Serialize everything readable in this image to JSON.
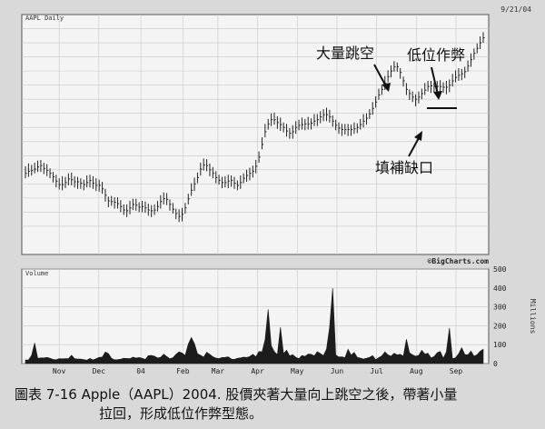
{
  "chart_data": [
    {
      "type": "line",
      "title": "AAPL Daily",
      "date": "9/21/04",
      "months": [
        "Nov",
        "Dec",
        "04",
        "Feb",
        "Mar",
        "Apr",
        "May",
        "Jun",
        "Jul",
        "Aug",
        "Sep"
      ],
      "series": [
        {
          "values": [
            63.5,
            63.8,
            63.9,
            64.1,
            64.4,
            64.6,
            64.2,
            63.9,
            63.5,
            63.0,
            62.4,
            61.9,
            61.9,
            62.2,
            62.7,
            62.6,
            62.3,
            62.3,
            62.1,
            61.9,
            62.2,
            62.5,
            62.1,
            61.8,
            61.8,
            61.3,
            60.4,
            59.6,
            59.5,
            59.4,
            59.2,
            58.8,
            58.3,
            58.2,
            58.6,
            59.1,
            59.0,
            58.7,
            58.8,
            58.6,
            58.3,
            58.2,
            58.3,
            58.8,
            59.5,
            59.9,
            59.8,
            59.1,
            58.4,
            57.8,
            57.4,
            57.7,
            58.6,
            59.9,
            61.1,
            62.0,
            62.9,
            64.1,
            64.7,
            64.6,
            64.0,
            63.5,
            62.9,
            62.5,
            62.2,
            62.2,
            62.4,
            62.5,
            62.1,
            61.8,
            62.2,
            62.8,
            63.2,
            63.5,
            63.8,
            64.5,
            65.8,
            67.6,
            69.4,
            70.5,
            71.1,
            71.1,
            70.7,
            70.4,
            70.0,
            69.5,
            69.2,
            69.4,
            70.0,
            70.3,
            70.4,
            70.5,
            70.5,
            70.6,
            70.9,
            71.1,
            71.5,
            71.8,
            71.8,
            71.5,
            70.9,
            70.3,
            69.9,
            69.7,
            69.7,
            69.7,
            69.7,
            69.8,
            70.0,
            70.4,
            70.9,
            71.3,
            71.9,
            72.7,
            73.6,
            74.6,
            75.4,
            76.3,
            77.2,
            78.0,
            78.6,
            78.6,
            77.8,
            76.6,
            75.4,
            74.8,
            74.3,
            74.0,
            74.3,
            74.8,
            75.3,
            75.8,
            75.9,
            75.8,
            75.8,
            75.8,
            75.7,
            75.7,
            76.0,
            76.6,
            77.1,
            77.4,
            77.6,
            77.9,
            78.7,
            79.6,
            80.5,
            81.2,
            82.0,
            82.7
          ],
          "highs": [
            64.5,
            64.9,
            64.7,
            65.0,
            65.3,
            65.4,
            65.0,
            64.8,
            64.2,
            63.7,
            63.3,
            62.8,
            63.1,
            63.0,
            63.5,
            63.6,
            63.1,
            63.0,
            62.8,
            62.6,
            63.2,
            63.3,
            63.1,
            62.8,
            62.6,
            62.3,
            61.3,
            60.2,
            60.3,
            60.1,
            60.1,
            59.7,
            59.1,
            59.1,
            59.6,
            59.9,
            59.9,
            59.4,
            59.6,
            59.5,
            59.2,
            59.0,
            59.1,
            59.6,
            60.4,
            60.8,
            60.7,
            59.8,
            59.3,
            58.5,
            58.4,
            58.6,
            59.3,
            60.6,
            62.1,
            62.9,
            63.6,
            65.0,
            65.6,
            65.5,
            64.9,
            64.4,
            63.8,
            63.3,
            63.0,
            63.1,
            63.3,
            63.2,
            63.0,
            62.5,
            63.2,
            63.5,
            64.0,
            64.3,
            64.6,
            65.4,
            66.6,
            68.6,
            70.5,
            71.2,
            72.0,
            72.1,
            71.6,
            71.4,
            70.7,
            70.5,
            69.9,
            70.3,
            70.9,
            71.1,
            71.4,
            71.2,
            71.5,
            71.3,
            71.9,
            71.9,
            72.3,
            72.6,
            72.8,
            72.5,
            71.7,
            71.1,
            70.7,
            70.5,
            70.5,
            70.5,
            70.4,
            70.7,
            70.6,
            71.2,
            71.9,
            72.0,
            72.6,
            73.6,
            74.4,
            75.5,
            76.0,
            77.3,
            78.1,
            78.8,
            79.4,
            79.2,
            78.4,
            77.2,
            76.3,
            75.4,
            75.1,
            74.7,
            75.1,
            75.5,
            76.3,
            76.6,
            76.6,
            76.4,
            76.6,
            76.7,
            76.4,
            76.6,
            76.8,
            77.6,
            78.1,
            78.4,
            78.3,
            78.6,
            79.5,
            80.5,
            81.2,
            81.9,
            82.9,
            83.5
          ],
          "lows": [
            62.8,
            63.0,
            63.2,
            63.5,
            63.7,
            63.7,
            63.4,
            63.1,
            62.8,
            62.2,
            61.5,
            61.2,
            61.1,
            61.4,
            61.8,
            61.8,
            61.5,
            61.3,
            61.3,
            61.1,
            61.5,
            61.5,
            61.3,
            61.0,
            60.9,
            60.6,
            59.5,
            58.7,
            58.9,
            58.5,
            58.5,
            58.0,
            57.6,
            57.3,
            57.7,
            58.3,
            58.2,
            58.0,
            58.0,
            57.9,
            57.5,
            57.3,
            57.6,
            58.1,
            58.5,
            59.1,
            59.0,
            58.2,
            57.8,
            57.0,
            56.6,
            56.7,
            57.8,
            59.1,
            60.3,
            61.0,
            62.1,
            63.2,
            63.9,
            63.8,
            63.1,
            62.8,
            62.1,
            61.9,
            61.4,
            61.5,
            61.4,
            61.6,
            61.3,
            61.1,
            61.3,
            62.1,
            62.3,
            62.5,
            62.9,
            63.5,
            65.0,
            66.9,
            68.6,
            69.7,
            70.2,
            70.4,
            69.8,
            69.5,
            69.3,
            68.7,
            68.4,
            68.4,
            69.1,
            69.6,
            69.7,
            69.6,
            69.7,
            69.7,
            70.2,
            70.2,
            70.6,
            70.9,
            70.9,
            70.7,
            70.1,
            69.6,
            69.1,
            68.8,
            69.0,
            68.8,
            68.8,
            69.1,
            69.2,
            69.7,
            70.0,
            70.4,
            71.2,
            71.8,
            72.8,
            73.9,
            74.6,
            75.3,
            76.4,
            77.1,
            77.9,
            77.9,
            76.9,
            75.8,
            74.6,
            73.9,
            73.6,
            73.0,
            73.4,
            74.0,
            74.6,
            75.1,
            74.9,
            75.0,
            75.0,
            75.0,
            74.9,
            74.7,
            75.0,
            75.8,
            76.4,
            76.6,
            76.7,
            77.0,
            77.9,
            78.6,
            79.6,
            80.5,
            81.1,
            82.0
          ]
        }
      ],
      "annotations": [
        "大量跳空",
        "低位作弊",
        "填補缺口"
      ],
      "source": "©BigCharts.com"
    },
    {
      "type": "area",
      "title": "Volume",
      "ylim": [
        0,
        500
      ],
      "yticks": [
        0,
        100,
        200,
        300,
        400,
        500
      ],
      "ylabel": "Millions",
      "values": [
        19,
        19,
        43,
        109,
        28,
        30,
        30,
        33,
        28,
        22,
        20,
        26,
        25,
        26,
        26,
        44,
        26,
        24,
        24,
        21,
        18,
        27,
        19,
        26,
        33,
        34,
        61,
        53,
        28,
        20,
        21,
        23,
        28,
        27,
        26,
        34,
        29,
        32,
        28,
        22,
        42,
        43,
        39,
        30,
        33,
        50,
        37,
        25,
        31,
        49,
        62,
        56,
        43,
        103,
        138,
        106,
        52,
        44,
        34,
        60,
        49,
        36,
        29,
        26,
        32,
        33,
        36,
        24,
        22,
        28,
        30,
        34,
        32,
        37,
        49,
        36,
        64,
        62,
        126,
        287,
        95,
        63,
        47,
        192,
        53,
        71,
        41,
        47,
        33,
        26,
        43,
        38,
        50,
        49,
        41,
        63,
        53,
        42,
        77,
        192,
        399,
        45,
        35,
        36,
        31,
        76,
        45,
        59,
        33,
        29,
        24,
        28,
        33,
        42,
        21,
        31,
        41,
        62,
        46,
        39,
        55,
        46,
        49,
        39,
        129,
        57,
        46,
        39,
        44,
        70,
        50,
        55,
        30,
        37,
        57,
        64,
        28,
        62,
        188,
        25,
        31,
        52,
        84,
        48,
        46,
        66,
        39,
        47,
        65,
        76
      ]
    }
  ],
  "caption": {
    "line1": "圖表 7-16 Apple（AAPL）2004. 股價夾著大量向上跳空之後，帶著小量",
    "line2": "拉回，形成低位作弊型態。"
  }
}
